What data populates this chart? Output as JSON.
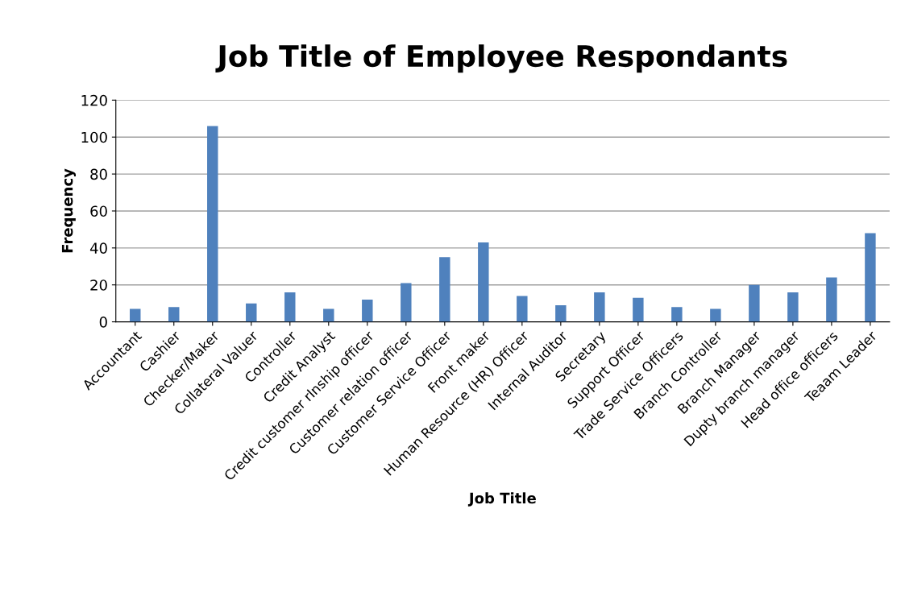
{
  "chart_data": {
    "type": "bar",
    "title": "Job Title of Employee Respondants",
    "xlabel": "Job Title",
    "ylabel": "Frequency",
    "categories": [
      "Accountant",
      "Cashier",
      "Checker/Maker",
      "Collateral Valuer",
      "Controller",
      "Credit Analyst",
      "Credit customer rlnship officer",
      "Customer relation officer",
      "Customer Service Officer",
      "Front maker",
      "Human Resource (HR) Officer",
      "Internal Auditor",
      "Secretary",
      "Support Officer",
      "Trade Service Officers",
      "Branch Controller",
      "Branch Manager",
      "Dupty branch manager",
      "Head office officers",
      "Teaam Leader"
    ],
    "values": [
      7,
      8,
      106,
      10,
      16,
      7,
      12,
      21,
      35,
      43,
      14,
      9,
      16,
      13,
      8,
      7,
      20,
      16,
      24,
      48
    ],
    "color": "#4f81bd",
    "ylim": [
      0,
      120
    ],
    "yticks": [
      0,
      20,
      40,
      60,
      80,
      100,
      120
    ],
    "grid": "y",
    "legend": false
  }
}
